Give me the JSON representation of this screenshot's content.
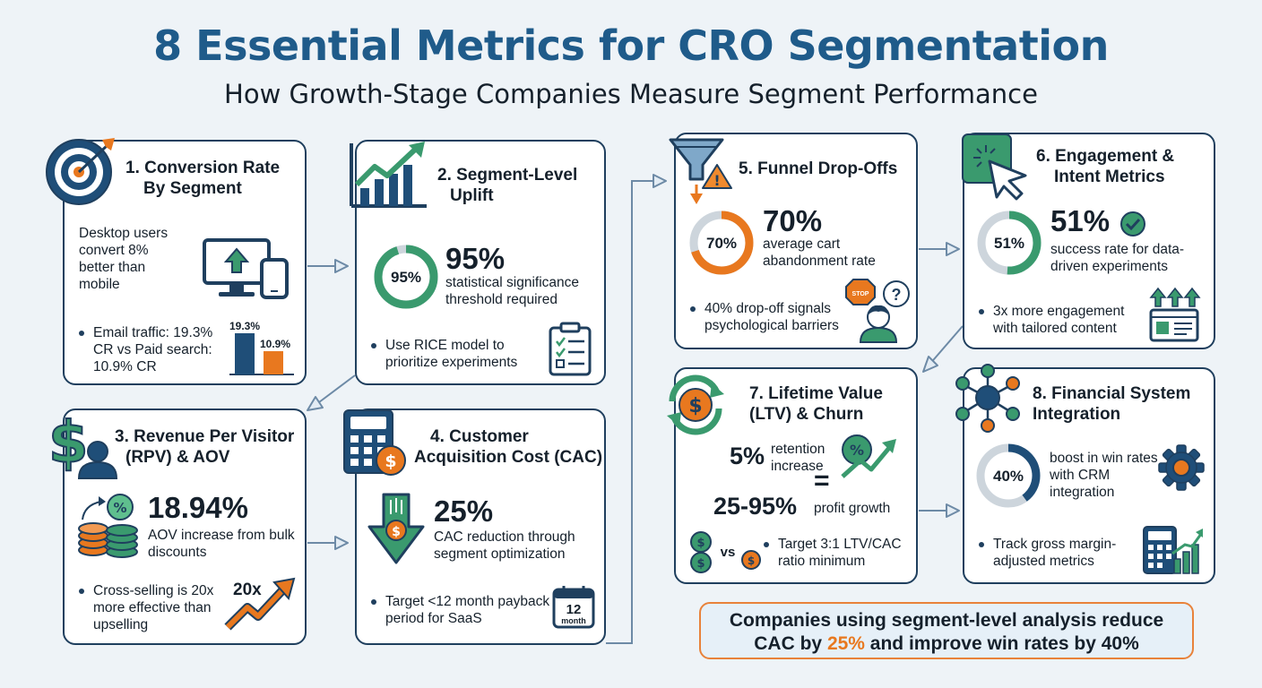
{
  "header": {
    "title": "8 Essential Metrics for CRO Segmentation",
    "subtitle": "How Growth-Stage Companies Measure Segment Performance"
  },
  "cards": {
    "c1": {
      "title_line1": "1. Conversion Rate",
      "title_line2": "By Segment",
      "desc": "Desktop users convert 8% better than mobile",
      "bullet": "Email traffic: 19.3% CR vs Paid search: 10.9% CR",
      "bar_a_label": "19.3%",
      "bar_a_value": 19.3,
      "bar_b_label": "10.9%",
      "bar_b_value": 10.9
    },
    "c2": {
      "title_line1": "2. Segment-Level",
      "title_line2": "Uplift",
      "ring_label": "95%",
      "ring_value": 95,
      "big": "95%",
      "desc": "statistical significance threshold required",
      "bullet": "Use RICE model to prioritize experiments"
    },
    "c3": {
      "title_line1": "3. Revenue Per Visitor",
      "title_line2": "(RPV) & AOV",
      "big": "18.94%",
      "desc": "AOV increase from bulk discounts",
      "bullet": "Cross-selling is 20x more effective than upselling",
      "arrow_label": "20x"
    },
    "c4": {
      "title_line1": "4. Customer",
      "title_line2": "Acquisition Cost (CAC)",
      "big": "25%",
      "desc": "CAC reduction through segment optimization",
      "bullet": "Target <12 month payback period for SaaS",
      "cal_num": "12",
      "cal_unit": "month"
    },
    "c5": {
      "title": "5. Funnel Drop-Offs",
      "ring_label": "70%",
      "ring_value": 70,
      "big": "70%",
      "desc": "average cart abandonment rate",
      "bullet": "40% drop-off signals psychological barriers",
      "stop_label": "STOP",
      "question": "?"
    },
    "c6": {
      "title_line1": "6. Engagement &",
      "title_line2": "Intent Metrics",
      "ring_label": "51%",
      "ring_value": 51,
      "big": "51%",
      "desc": "success rate for data-driven experiments",
      "bullet": "3x more engagement with tailored content"
    },
    "c7": {
      "title_line1": "7. Lifetime Value",
      "title_line2": "(LTV) & Churn",
      "pct": "5%",
      "pct_desc": "retention increase",
      "equals": "=",
      "range": "25-95%",
      "range_desc": "profit growth",
      "vs": "vs",
      "bullet": "Target 3:1 LTV/CAC ratio minimum"
    },
    "c8": {
      "title_line1": "8. Financial System",
      "title_line2": "Integration",
      "ring_label": "40%",
      "ring_value": 40,
      "desc": "boost in win rates with CRM integration",
      "bullet": "Track gross margin-adjusted metrics"
    }
  },
  "callout": {
    "line1": "Companies using segment-level analysis reduce",
    "line2_a": "CAC by ",
    "line2_b": "25%",
    "line2_c": " and improve win rates by 40%"
  },
  "colors": {
    "navy": "#1f3f5e",
    "green": "#3a9a6e",
    "orange": "#e8781f",
    "blue": "#1f5b8a",
    "grey_ring": "#cdd5dc"
  }
}
